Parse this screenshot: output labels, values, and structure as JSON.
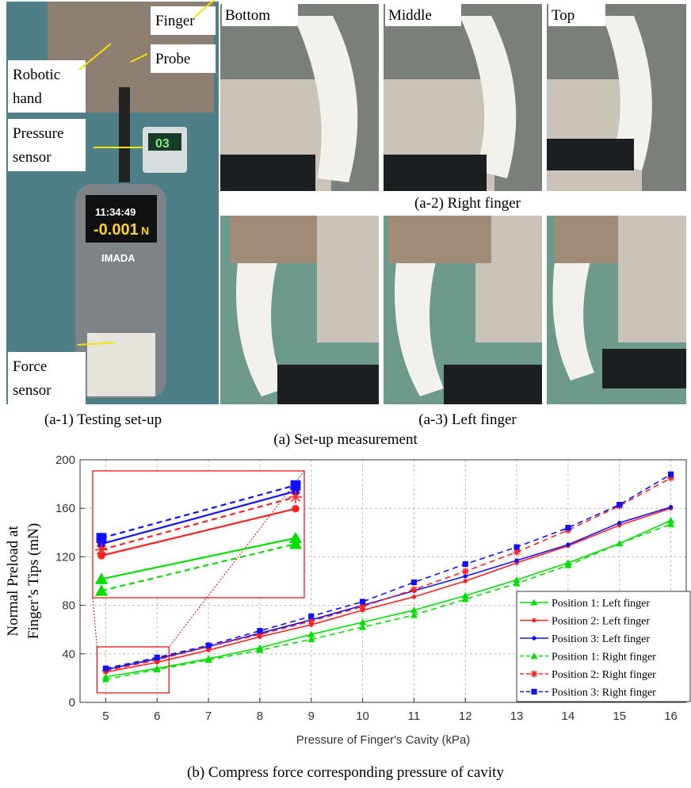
{
  "photos": {
    "setup_labels": [
      [
        "Finger"
      ],
      [
        "Probe"
      ],
      [
        "Robotic",
        "hand"
      ],
      [
        "Pressure",
        "sensor"
      ],
      [
        "Force",
        "sensor"
      ]
    ],
    "device_texts": [
      "03",
      "11:34:49",
      "-0.001",
      "N",
      "IMADA"
    ],
    "columns": [
      "Bottom",
      "Middle",
      "Top"
    ],
    "captions": {
      "setup": "(a-1) Testing set-up",
      "right": "(a-2) Right finger",
      "left": "(a-3) Left finger",
      "overall": "(a) Set-up measurement"
    }
  },
  "chart_data": {
    "type": "line",
    "caption": "(b) Compress force corresponding pressure of cavity",
    "xlabel": "Pressure of Finger's Cavity (kPa)",
    "ylabel": [
      "Normal Preload at",
      "Finger’s Tips (mN)"
    ],
    "x": [
      5,
      6,
      7,
      8,
      9,
      10,
      11,
      12,
      13,
      14,
      15,
      16
    ],
    "xlim": [
      4.5,
      16.3
    ],
    "xticks": [
      5,
      6,
      7,
      8,
      9,
      10,
      11,
      12,
      13,
      14,
      15,
      16
    ],
    "ylim": [
      0,
      200
    ],
    "yticks": [
      0,
      40,
      80,
      120,
      160,
      200
    ],
    "grid": true,
    "legend": "lower right",
    "series": [
      {
        "name": "Position 1: Left finger",
        "color": "#00e000",
        "dash": false,
        "marker": "triangle",
        "values": [
          21,
          28,
          36,
          45,
          56,
          66,
          76,
          88,
          101,
          115,
          131,
          150
        ]
      },
      {
        "name": "Position 2: Left finger",
        "color": "#ff2020",
        "dash": false,
        "marker": "dot",
        "values": [
          25,
          33,
          43,
          54,
          64,
          76,
          87,
          100,
          115,
          129,
          146,
          160
        ]
      },
      {
        "name": "Position 3: Left finger",
        "color": "#1010ff",
        "dash": false,
        "marker": "dot",
        "values": [
          27,
          36,
          46,
          57,
          68,
          80,
          92,
          104,
          117,
          130,
          148,
          161
        ]
      },
      {
        "name": "Position 1: Right finger",
        "color": "#00e000",
        "dash": true,
        "marker": "triangle",
        "values": [
          19,
          27,
          35,
          43,
          52,
          62,
          72,
          85,
          98,
          113,
          131,
          147
        ]
      },
      {
        "name": "Position 2: Right finger",
        "color": "#ff2020",
        "dash": true,
        "marker": "asterisk",
        "values": [
          26,
          35,
          46,
          56,
          67,
          79,
          93,
          108,
          124,
          142,
          162,
          185
        ]
      },
      {
        "name": "Position 3: Right finger",
        "color": "#1010ff",
        "dash": true,
        "marker": "square",
        "values": [
          28,
          37,
          47,
          59,
          71,
          83,
          99,
          114,
          128,
          144,
          163,
          188
        ]
      }
    ]
  }
}
